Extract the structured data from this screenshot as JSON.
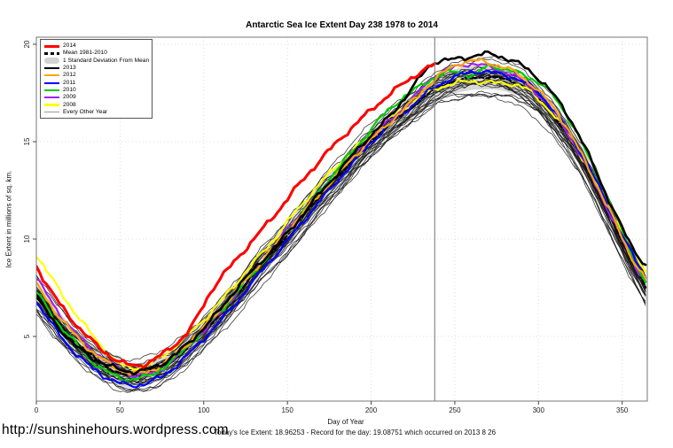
{
  "page": {
    "url_watermark": "http://sunshinehours.wordpress.com",
    "background_color": "#ffffff"
  },
  "chart": {
    "title": "Antarctic Sea Ice Extent Day 238 1978 to 2014",
    "x_axis": {
      "label": "Day of Year",
      "ticks": [
        0,
        50,
        100,
        150,
        200,
        250,
        300,
        350
      ],
      "range": [
        0,
        365
      ]
    },
    "y_axis": {
      "label": "Ice Extent in millions of sq. km.",
      "ticks": [
        5,
        10,
        15,
        20
      ],
      "range": [
        1.7,
        20.4
      ]
    },
    "footer": "Today's Ice Extent: 18.96253 - Record for the day: 19.08751 which occurred on 2013 8 26",
    "today_ice_extent": 18.96253,
    "record_for_day": 19.08751,
    "record_date": "2013 8 26",
    "vertical_line_day": 238,
    "colors": {
      "grid": "#dcdcdc",
      "box": "#777777",
      "marker_line": "#737373",
      "std_band": "#d8d8d8",
      "background_years": "#1a1a1a"
    },
    "legend": {
      "items": [
        {
          "label": "2014",
          "color": "#ff0000",
          "style": "line",
          "weight": 3
        },
        {
          "label": "Mean 1981-2010",
          "color": "#000000",
          "style": "dashed",
          "weight": 2.2
        },
        {
          "label": "1 Standard Deviation From Mean",
          "color": "#d3d3d3",
          "style": "band",
          "weight": 7
        },
        {
          "label": "2013",
          "color": "#000000",
          "style": "line",
          "weight": 2.6
        },
        {
          "label": "2012",
          "color": "#ffa500",
          "style": "line",
          "weight": 2.2
        },
        {
          "label": "2011",
          "color": "#0000ff",
          "style": "line",
          "weight": 2.2
        },
        {
          "label": "2010",
          "color": "#00cc00",
          "style": "line",
          "weight": 2.2
        },
        {
          "label": "2009",
          "color": "#a020f0",
          "style": "line",
          "weight": 2.2
        },
        {
          "label": "2008",
          "color": "#ffff00",
          "style": "line",
          "weight": 2.2
        },
        {
          "label": "Every Other Year",
          "color": "#999999",
          "style": "line",
          "weight": 1
        }
      ]
    }
  },
  "chart_data": {
    "type": "line",
    "title": "Antarctic Sea Ice Extent Day 238 1978 to 2014",
    "xlabel": "Day of Year",
    "ylabel": "Ice Extent in millions of sq. km.",
    "xlim": [
      0,
      365
    ],
    "ylim": [
      1.7,
      20.4
    ],
    "grid": true,
    "legend_position": "top-left",
    "annotation_line_x": 238,
    "std_band": {
      "around": "Mean 1981-2010",
      "half_width": 0.62,
      "color": "#d8d8d8"
    },
    "background_years": {
      "label": "Every Other Year",
      "count": 27,
      "color": "#1a1a1a",
      "width": 0.75,
      "offset_range": 0.8
    },
    "series": [
      {
        "name": "Mean 1981-2010",
        "color": "#000000",
        "dash": "5,3",
        "width": 2.2,
        "points": [
          [
            0,
            7.2
          ],
          [
            12,
            5.8
          ],
          [
            25,
            4.6
          ],
          [
            38,
            3.7
          ],
          [
            50,
            3.1
          ],
          [
            60,
            3.0
          ],
          [
            72,
            3.3
          ],
          [
            85,
            4.0
          ],
          [
            98,
            5.1
          ],
          [
            110,
            6.2
          ],
          [
            122,
            7.4
          ],
          [
            135,
            8.8
          ],
          [
            150,
            10.2
          ],
          [
            165,
            11.8
          ],
          [
            180,
            13.2
          ],
          [
            195,
            14.6
          ],
          [
            210,
            15.8
          ],
          [
            225,
            16.8
          ],
          [
            238,
            17.7
          ],
          [
            250,
            18.1
          ],
          [
            265,
            18.3
          ],
          [
            280,
            18.2
          ],
          [
            295,
            17.6
          ],
          [
            310,
            16.2
          ],
          [
            325,
            14.3
          ],
          [
            340,
            11.7
          ],
          [
            355,
            9.0
          ],
          [
            365,
            7.4
          ]
        ]
      },
      {
        "name": "2008",
        "color": "#ffff00",
        "dash": null,
        "width": 2.2,
        "points": [
          [
            0,
            9.2
          ],
          [
            12,
            7.6
          ],
          [
            25,
            6.0
          ],
          [
            38,
            4.6
          ],
          [
            48,
            3.7
          ],
          [
            56,
            3.4
          ],
          [
            68,
            3.6
          ],
          [
            80,
            4.3
          ],
          [
            92,
            5.2
          ],
          [
            105,
            6.3
          ],
          [
            118,
            7.6
          ],
          [
            130,
            8.8
          ],
          [
            142,
            10.0
          ],
          [
            155,
            11.4
          ],
          [
            168,
            12.7
          ],
          [
            180,
            13.8
          ],
          [
            195,
            15.0
          ],
          [
            210,
            16.1
          ],
          [
            225,
            17.0
          ],
          [
            238,
            17.7
          ],
          [
            250,
            18.0
          ],
          [
            262,
            18.1
          ],
          [
            275,
            18.0
          ],
          [
            288,
            17.9
          ],
          [
            300,
            17.2
          ],
          [
            315,
            15.7
          ],
          [
            330,
            13.6
          ],
          [
            345,
            11.2
          ],
          [
            356,
            9.5
          ],
          [
            365,
            8.2
          ]
        ]
      },
      {
        "name": "2009",
        "color": "#a020f0",
        "dash": null,
        "width": 2.2,
        "points": [
          [
            0,
            8.0
          ],
          [
            12,
            6.4
          ],
          [
            25,
            5.0
          ],
          [
            38,
            4.0
          ],
          [
            52,
            3.2
          ],
          [
            62,
            3.0
          ],
          [
            74,
            3.3
          ],
          [
            86,
            4.1
          ],
          [
            98,
            5.1
          ],
          [
            110,
            6.2
          ],
          [
            122,
            7.5
          ],
          [
            135,
            8.9
          ],
          [
            150,
            10.5
          ],
          [
            165,
            12.0
          ],
          [
            180,
            13.4
          ],
          [
            195,
            14.8
          ],
          [
            210,
            16.0
          ],
          [
            225,
            17.2
          ],
          [
            238,
            18.4
          ],
          [
            250,
            18.8
          ],
          [
            260,
            19.0
          ],
          [
            272,
            18.8
          ],
          [
            285,
            18.4
          ],
          [
            300,
            17.4
          ],
          [
            315,
            15.8
          ],
          [
            330,
            13.5
          ],
          [
            345,
            10.9
          ],
          [
            356,
            8.9
          ],
          [
            365,
            7.7
          ]
        ]
      },
      {
        "name": "2010",
        "color": "#00cc00",
        "dash": null,
        "width": 2.2,
        "points": [
          [
            0,
            7.3
          ],
          [
            12,
            5.8
          ],
          [
            25,
            4.5
          ],
          [
            38,
            3.4
          ],
          [
            50,
            2.9
          ],
          [
            58,
            2.8
          ],
          [
            70,
            3.1
          ],
          [
            82,
            3.8
          ],
          [
            95,
            4.9
          ],
          [
            108,
            6.1
          ],
          [
            120,
            7.3
          ],
          [
            135,
            8.8
          ],
          [
            150,
            10.4
          ],
          [
            165,
            12.0
          ],
          [
            180,
            13.6
          ],
          [
            195,
            15.1
          ],
          [
            210,
            16.6
          ],
          [
            225,
            17.6
          ],
          [
            238,
            18.3
          ],
          [
            250,
            18.6
          ],
          [
            262,
            18.4
          ],
          [
            270,
            18.9
          ],
          [
            280,
            18.7
          ],
          [
            292,
            18.4
          ],
          [
            305,
            17.7
          ],
          [
            318,
            16.2
          ],
          [
            330,
            14.2
          ],
          [
            345,
            11.4
          ],
          [
            356,
            9.2
          ],
          [
            365,
            7.6
          ]
        ]
      },
      {
        "name": "2011",
        "color": "#0000ff",
        "dash": null,
        "width": 2.2,
        "points": [
          [
            0,
            6.8
          ],
          [
            12,
            5.3
          ],
          [
            25,
            4.0
          ],
          [
            38,
            3.1
          ],
          [
            50,
            2.6
          ],
          [
            60,
            2.5
          ],
          [
            72,
            2.8
          ],
          [
            85,
            3.6
          ],
          [
            98,
            4.7
          ],
          [
            110,
            5.8
          ],
          [
            122,
            7.0
          ],
          [
            135,
            8.4
          ],
          [
            150,
            9.9
          ],
          [
            165,
            11.5
          ],
          [
            180,
            13.0
          ],
          [
            195,
            14.5
          ],
          [
            210,
            15.8
          ],
          [
            225,
            16.9
          ],
          [
            238,
            17.8
          ],
          [
            250,
            18.3
          ],
          [
            262,
            18.6
          ],
          [
            275,
            18.5
          ],
          [
            288,
            18.2
          ],
          [
            300,
            17.5
          ],
          [
            315,
            15.9
          ],
          [
            330,
            13.7
          ],
          [
            345,
            11.1
          ],
          [
            356,
            9.2
          ],
          [
            365,
            7.9
          ]
        ]
      },
      {
        "name": "2012",
        "color": "#ffa500",
        "dash": null,
        "width": 2.2,
        "points": [
          [
            0,
            7.7
          ],
          [
            12,
            6.2
          ],
          [
            25,
            4.9
          ],
          [
            38,
            3.9
          ],
          [
            50,
            3.3
          ],
          [
            60,
            3.1
          ],
          [
            72,
            3.4
          ],
          [
            85,
            4.2
          ],
          [
            98,
            5.3
          ],
          [
            110,
            6.4
          ],
          [
            122,
            7.6
          ],
          [
            135,
            8.9
          ],
          [
            150,
            10.4
          ],
          [
            165,
            11.9
          ],
          [
            180,
            13.3
          ],
          [
            195,
            14.7
          ],
          [
            210,
            15.9
          ],
          [
            225,
            17.1
          ],
          [
            238,
            18.2
          ],
          [
            250,
            18.9
          ],
          [
            260,
            19.15
          ],
          [
            272,
            19.0
          ],
          [
            285,
            18.6
          ],
          [
            300,
            17.6
          ],
          [
            315,
            16.0
          ],
          [
            330,
            13.6
          ],
          [
            345,
            11.0
          ],
          [
            356,
            9.0
          ],
          [
            365,
            7.8
          ]
        ]
      },
      {
        "name": "2013",
        "color": "#000000",
        "dash": null,
        "width": 2.6,
        "points": [
          [
            0,
            7.0
          ],
          [
            12,
            5.6
          ],
          [
            25,
            4.4
          ],
          [
            38,
            3.7
          ],
          [
            50,
            3.3
          ],
          [
            60,
            3.2
          ],
          [
            70,
            3.4
          ],
          [
            82,
            4.0
          ],
          [
            95,
            5.0
          ],
          [
            108,
            6.2
          ],
          [
            120,
            7.5
          ],
          [
            135,
            8.9
          ],
          [
            150,
            10.3
          ],
          [
            165,
            11.9
          ],
          [
            180,
            13.4
          ],
          [
            195,
            14.9
          ],
          [
            210,
            16.2
          ],
          [
            225,
            17.8
          ],
          [
            232,
            18.6
          ],
          [
            238,
            19.09
          ],
          [
            248,
            19.2
          ],
          [
            258,
            19.35
          ],
          [
            270,
            19.5
          ],
          [
            280,
            19.3
          ],
          [
            292,
            18.8
          ],
          [
            305,
            17.8
          ],
          [
            318,
            16.3
          ],
          [
            330,
            14.3
          ],
          [
            342,
            12.0
          ],
          [
            354,
            9.9
          ],
          [
            365,
            8.5
          ]
        ]
      },
      {
        "name": "2014",
        "color": "#ff0000",
        "dash": null,
        "width": 3.1,
        "end_day": 238,
        "points": [
          [
            0,
            8.6
          ],
          [
            12,
            6.9
          ],
          [
            25,
            5.5
          ],
          [
            38,
            4.4
          ],
          [
            50,
            3.7
          ],
          [
            58,
            3.5
          ],
          [
            68,
            3.7
          ],
          [
            80,
            4.4
          ],
          [
            92,
            5.4
          ],
          [
            105,
            7.4
          ],
          [
            118,
            8.8
          ],
          [
            130,
            10.0
          ],
          [
            142,
            11.2
          ],
          [
            155,
            12.6
          ],
          [
            168,
            13.9
          ],
          [
            180,
            15.0
          ],
          [
            192,
            16.0
          ],
          [
            205,
            17.0
          ],
          [
            218,
            17.9
          ],
          [
            228,
            18.5
          ],
          [
            238,
            18.96
          ]
        ]
      }
    ]
  }
}
